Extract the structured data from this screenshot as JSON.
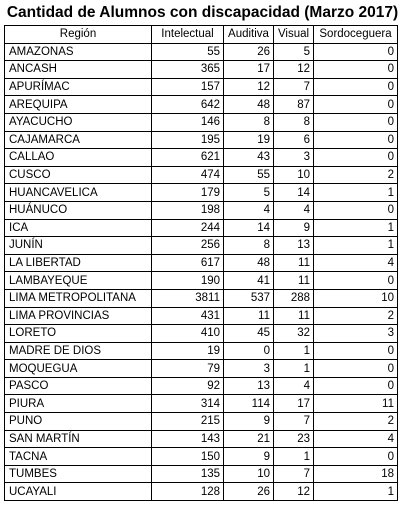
{
  "title": "Cantidad de Alumnos con discapacidad (Marzo 2017)",
  "columns": [
    "Región",
    "Intelectual",
    "Auditiva",
    "Visual",
    "Sordoceguera"
  ],
  "rows": [
    {
      "region": "AMAZONAS",
      "intelectual": "55",
      "auditiva": "26",
      "visual": "5",
      "sordoceguera": "0"
    },
    {
      "region": "ANCASH",
      "intelectual": "365",
      "auditiva": "17",
      "visual": "12",
      "sordoceguera": "0"
    },
    {
      "region": "APURÍMAC",
      "intelectual": "157",
      "auditiva": "12",
      "visual": "7",
      "sordoceguera": "0"
    },
    {
      "region": "AREQUIPA",
      "intelectual": "642",
      "auditiva": "48",
      "visual": "87",
      "sordoceguera": "0"
    },
    {
      "region": "AYACUCHO",
      "intelectual": "146",
      "auditiva": "8",
      "visual": "8",
      "sordoceguera": "0"
    },
    {
      "region": "CAJAMARCA",
      "intelectual": "195",
      "auditiva": "19",
      "visual": "6",
      "sordoceguera": "0"
    },
    {
      "region": "CALLAO",
      "intelectual": "621",
      "auditiva": "43",
      "visual": "3",
      "sordoceguera": "0"
    },
    {
      "region": "CUSCO",
      "intelectual": "474",
      "auditiva": "55",
      "visual": "10",
      "sordoceguera": "2"
    },
    {
      "region": "HUANCAVELICA",
      "intelectual": "179",
      "auditiva": "5",
      "visual": "14",
      "sordoceguera": "1"
    },
    {
      "region": "HUÁNUCO",
      "intelectual": "198",
      "auditiva": "4",
      "visual": "4",
      "sordoceguera": "0"
    },
    {
      "region": "ICA",
      "intelectual": "244",
      "auditiva": "14",
      "visual": "9",
      "sordoceguera": "1"
    },
    {
      "region": "JUNÍN",
      "intelectual": "256",
      "auditiva": "8",
      "visual": "13",
      "sordoceguera": "1"
    },
    {
      "region": "LA LIBERTAD",
      "intelectual": "617",
      "auditiva": "48",
      "visual": "11",
      "sordoceguera": "4"
    },
    {
      "region": "LAMBAYEQUE",
      "intelectual": "190",
      "auditiva": "41",
      "visual": "11",
      "sordoceguera": "0"
    },
    {
      "region": "LIMA METROPOLITANA",
      "intelectual": "3811",
      "auditiva": "537",
      "visual": "288",
      "sordoceguera": "10"
    },
    {
      "region": "LIMA PROVINCIAS",
      "intelectual": "431",
      "auditiva": "11",
      "visual": "11",
      "sordoceguera": "2"
    },
    {
      "region": "LORETO",
      "intelectual": "410",
      "auditiva": "45",
      "visual": "32",
      "sordoceguera": "3"
    },
    {
      "region": "MADRE DE DIOS",
      "intelectual": "19",
      "auditiva": "0",
      "visual": "1",
      "sordoceguera": "0"
    },
    {
      "region": "MOQUEGUA",
      "intelectual": "79",
      "auditiva": "3",
      "visual": "1",
      "sordoceguera": "0"
    },
    {
      "region": "PASCO",
      "intelectual": "92",
      "auditiva": "13",
      "visual": "4",
      "sordoceguera": "0"
    },
    {
      "region": "PIURA",
      "intelectual": "314",
      "auditiva": "114",
      "visual": "17",
      "sordoceguera": "11"
    },
    {
      "region": "PUNO",
      "intelectual": "215",
      "auditiva": "9",
      "visual": "7",
      "sordoceguera": "2"
    },
    {
      "region": "SAN MARTÍN",
      "intelectual": "143",
      "auditiva": "21",
      "visual": "23",
      "sordoceguera": "4"
    },
    {
      "region": "TACNA",
      "intelectual": "150",
      "auditiva": "9",
      "visual": "1",
      "sordoceguera": "0"
    },
    {
      "region": "TUMBES",
      "intelectual": "135",
      "auditiva": "10",
      "visual": "7",
      "sordoceguera": "18"
    },
    {
      "region": "UCAYALI",
      "intelectual": "128",
      "auditiva": "26",
      "visual": "12",
      "sordoceguera": "1"
    }
  ]
}
